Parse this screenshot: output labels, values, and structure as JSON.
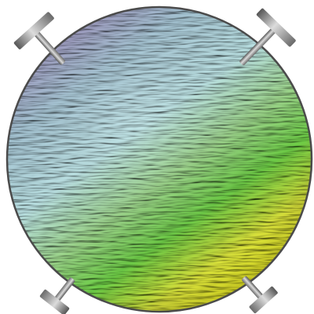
{
  "image": {
    "subject": "textured-gradient-disc",
    "gradient_colors": [
      "#9d86b9",
      "#a8c8d8",
      "#bfe7e9",
      "#9fd88e",
      "#6fcf47",
      "#d9e23b",
      "#f5f321"
    ],
    "pin_color": "#8f8f8f",
    "pin_highlight": "#dcdcdc",
    "pin_shadow": "#555555",
    "rim_color": "#4b4b4b",
    "pins": [
      {
        "name": "top-left-pin-icon",
        "position": "top-left"
      },
      {
        "name": "top-right-pin-icon",
        "position": "top-right"
      },
      {
        "name": "bottom-left-pin-icon",
        "position": "bottom-left"
      },
      {
        "name": "bottom-right-pin-icon",
        "position": "bottom-right"
      }
    ]
  }
}
